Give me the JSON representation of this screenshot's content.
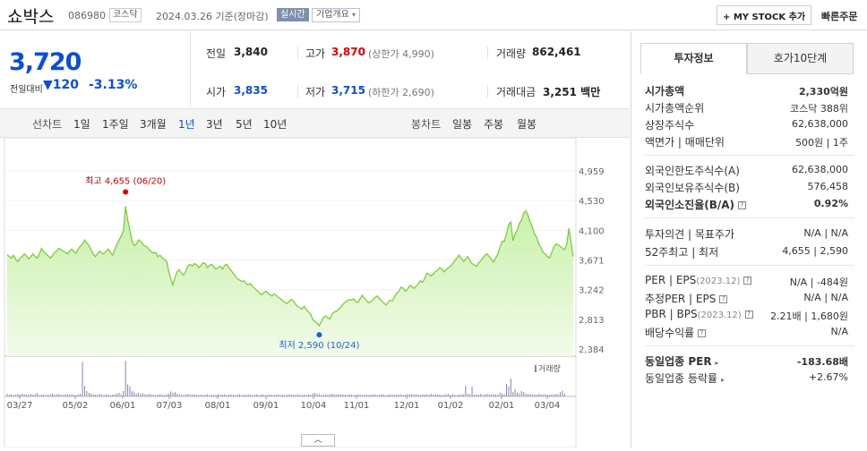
{
  "stock": {
    "name": "쇼박스",
    "code": "086980",
    "market": "코스닥",
    "date": "2024.03.26 기준(장마감)",
    "realtime": "실시간",
    "company_info": "기업개요"
  },
  "actions": {
    "my_stock": "+ MY STOCK 추가",
    "quick_order": "빠른주문"
  },
  "current": {
    "price": "3,720",
    "compare_label": "전일대비",
    "arrow": "▼",
    "change": "120",
    "rate": "-3.13%"
  },
  "summary": {
    "prev_label": "전일",
    "prev": "3,840",
    "high_label": "고가",
    "high": "3,870",
    "upper_limit": "(상한가 4,990)",
    "volume_label": "거래량",
    "volume": "862,461",
    "open_label": "시가",
    "open": "3,835",
    "low_label": "저가",
    "low": "3,715",
    "lower_limit": "(하한가 2,690)",
    "amount_label": "거래대금",
    "amount": "3,251",
    "amount_unit": "백만"
  },
  "chart_tabs": {
    "line_label": "선차트",
    "line_items": [
      "1일",
      "1주일",
      "3개월",
      "1년",
      "3년",
      "5년",
      "10년"
    ],
    "active": "1년",
    "candle_label": "봉차트",
    "candle_items": [
      "일봉",
      "주봉",
      "월봉"
    ]
  },
  "chart_data": {
    "type": "area",
    "yticks": [
      4959,
      4530,
      4100,
      3671,
      3242,
      2813,
      2384
    ],
    "ylim": [
      2384,
      4959
    ],
    "xticks": [
      "03/27",
      "05/02",
      "06/01",
      "07/03",
      "08/01",
      "09/01",
      "10/04",
      "11/01",
      "12/01",
      "01/02",
      "02/01",
      "03/04"
    ],
    "max_label": "최고 4,655 (06/20)",
    "min_label": "최저 2,590 (10/24)",
    "max_value": 4655,
    "min_value": 2590,
    "volume_legend": "거래량",
    "price": [
      3750,
      3720,
      3700,
      3740,
      3680,
      3650,
      3700,
      3720,
      3760,
      3730,
      3690,
      3720,
      3760,
      3720,
      3700,
      3760,
      3840,
      3790,
      3760,
      3730,
      3700,
      3730,
      3780,
      3800,
      3840,
      3820,
      3800,
      3780,
      3760,
      3800,
      3830,
      3790,
      3770,
      3830,
      3870,
      3900,
      3960,
      3920,
      3880,
      3820,
      3760,
      3720,
      3760,
      3800,
      3770,
      3760,
      3800,
      3830,
      3780,
      3740,
      3820,
      3900,
      3960,
      4020,
      4090,
      4450,
      4250,
      4100,
      3950,
      3880,
      3900,
      3960,
      3940,
      3900,
      3870,
      3860,
      3820,
      3790,
      3770,
      3780,
      3720,
      3740,
      3700,
      3680,
      3660,
      3520,
      3400,
      3310,
      3420,
      3500,
      3530,
      3480,
      3450,
      3510,
      3590,
      3610,
      3580,
      3620,
      3600,
      3560,
      3590,
      3630,
      3620,
      3560,
      3590,
      3610,
      3570,
      3540,
      3560,
      3580,
      3540,
      3590,
      3610,
      3560,
      3520,
      3480,
      3440,
      3400,
      3380,
      3360,
      3370,
      3330,
      3310,
      3330,
      3290,
      3260,
      3230,
      3200,
      3170,
      3190,
      3220,
      3200,
      3170,
      3150,
      3180,
      3160,
      3130,
      3110,
      3080,
      3060,
      3040,
      3070,
      3100,
      3080,
      3030,
      3000,
      2980,
      2960,
      3000,
      2950,
      2920,
      2890,
      2810,
      2780,
      2760,
      2720,
      2780,
      2840,
      2860,
      2830,
      2820,
      2890,
      2920,
      2930,
      2960,
      2990,
      3030,
      3060,
      3080,
      3100,
      3090,
      3110,
      3070,
      3060,
      3110,
      3160,
      3120,
      3080,
      3050,
      3070,
      3100,
      3130,
      3150,
      3110,
      3080,
      3050,
      3020,
      3060,
      3090,
      3080,
      3140,
      3190,
      3220,
      3280,
      3260,
      3220,
      3250,
      3300,
      3290,
      3260,
      3290,
      3330,
      3370,
      3350,
      3400,
      3480,
      3460,
      3440,
      3470,
      3510,
      3520,
      3560,
      3540,
      3500,
      3530,
      3560,
      3580,
      3620,
      3660,
      3700,
      3740,
      3700,
      3650,
      3680,
      3720,
      3660,
      3620,
      3600,
      3580,
      3630,
      3660,
      3700,
      3740,
      3760,
      3720,
      3680,
      3640,
      3700,
      3760,
      3860,
      3940,
      3940,
      4050,
      4180,
      4220,
      3950,
      4050,
      4100,
      4200,
      4250,
      4350,
      4380,
      4320,
      4220,
      4150,
      4050,
      4000,
      3900,
      3850,
      3780,
      3760,
      3720,
      3700,
      3780,
      3860,
      3900,
      3890,
      3870,
      3840,
      3820,
      3900,
      4130,
      3920,
      3720
    ],
    "volume": [
      0.08,
      0.05,
      0.06,
      0.04,
      0.05,
      0.07,
      0.05,
      0.08,
      0.06,
      0.05,
      0.06,
      0.07,
      0.05,
      0.06,
      0.1,
      0.04,
      0.05,
      0.06,
      0.04,
      0.05,
      0.06,
      0.08,
      0.05,
      0.06,
      0.07,
      0.05,
      0.04,
      0.06,
      0.07,
      0.05,
      0.06,
      0.05,
      0.04,
      0.06,
      0.08,
      0.96,
      0.3,
      0.15,
      0.1,
      0.08,
      0.06,
      0.05,
      0.06,
      0.07,
      0.05,
      0.04,
      0.06,
      0.05,
      0.04,
      0.05,
      0.06,
      0.08,
      0.1,
      0.06,
      0.15,
      1.0,
      0.34,
      0.28,
      0.15,
      0.12,
      0.08,
      0.1,
      0.07,
      0.09,
      0.06,
      0.05,
      0.07,
      0.06,
      0.05,
      0.04,
      0.05,
      0.06,
      0.05,
      0.04,
      0.06,
      0.08,
      0.14,
      0.1,
      0.12,
      0.08,
      0.06,
      0.05,
      0.04,
      0.06,
      0.07,
      0.05,
      0.05,
      0.06,
      0.04,
      0.05,
      0.05,
      0.04,
      0.05,
      0.06,
      0.04,
      0.05,
      0.04,
      0.05,
      0.06,
      0.05,
      0.05,
      0.06,
      0.04,
      0.05,
      0.06,
      0.05,
      0.04,
      0.05,
      0.06,
      0.04,
      0.05,
      0.04,
      0.06,
      0.05,
      0.04,
      0.05,
      0.06,
      0.04,
      0.05,
      0.05,
      0.04,
      0.05,
      0.06,
      0.04,
      0.05,
      0.05,
      0.06,
      0.04,
      0.05,
      0.04,
      0.05,
      0.06,
      0.05,
      0.04,
      0.05,
      0.06,
      0.05,
      0.04,
      0.05,
      0.04,
      0.06,
      0.05,
      0.08,
      0.1,
      0.07,
      0.06,
      0.05,
      0.04,
      0.06,
      0.05,
      0.06,
      0.08,
      0.06,
      0.05,
      0.07,
      0.05,
      0.06,
      0.05,
      0.04,
      0.06,
      0.05,
      0.04,
      0.05,
      0.06,
      0.05,
      0.04,
      0.05,
      0.06,
      0.04,
      0.05,
      0.05,
      0.06,
      0.04,
      0.05,
      0.06,
      0.05,
      0.04,
      0.05,
      0.06,
      0.05,
      0.04,
      0.06,
      0.05,
      0.06,
      0.04,
      0.05,
      0.06,
      0.05,
      0.07,
      0.05,
      0.06,
      0.05,
      0.04,
      0.06,
      0.05,
      0.06,
      0.05,
      0.07,
      0.05,
      0.06,
      0.05,
      0.06,
      0.04,
      0.05,
      0.06,
      0.07,
      0.05,
      0.06,
      0.05,
      0.04,
      0.05,
      0.06,
      0.05,
      0.3,
      0.08,
      0.06,
      0.28,
      0.05,
      0.06,
      0.05,
      0.07,
      0.05,
      0.06,
      0.08,
      0.06,
      0.05,
      0.07,
      0.05,
      0.06,
      0.1,
      0.08,
      0.06,
      0.35,
      0.28,
      0.5,
      0.12,
      0.2,
      0.1,
      0.08,
      0.15,
      0.12,
      0.08,
      0.06,
      0.07,
      0.05,
      0.06,
      0.05,
      0.07,
      0.06,
      0.05,
      0.06,
      0.05,
      0.04,
      0.06,
      0.05,
      0.07,
      0.06,
      0.12,
      0.16,
      0.08
    ]
  },
  "invest_tabs": {
    "info": "투자정보",
    "order10": "호가10단계"
  },
  "invest": {
    "market_cap_label": "시가총액",
    "market_cap": "2,330억원",
    "cap_rank_label": "시가총액순위",
    "cap_rank": "코스닥 388위",
    "shares_label": "상장주식수",
    "shares": "62,638,000",
    "face_label": "액면가 | 매매단위",
    "face": "500원 | 1주",
    "foreign_limit_label": "외국인한도주식수(A)",
    "foreign_limit": "62,638,000",
    "foreign_hold_label": "외국인보유주식수(B)",
    "foreign_hold": "576,458",
    "foreign_ratio_label": "외국인소진율(B/A)",
    "foreign_ratio": "0.92%",
    "opinion_label": "투자의견 | 목표주가",
    "opinion": "N/A | N/A",
    "week52_label": "52주최고 | 최저",
    "week52": "4,655 | 2,590",
    "per_label": "PER | EPS",
    "per_year": "(2023.12)",
    "per": "N/A | -484원",
    "est_label": "추정PER | EPS",
    "est": "N/A | N/A",
    "pbr_label": "PBR | BPS",
    "pbr_year": "(2023.12)",
    "pbr": "2.21배 | 1,680원",
    "div_label": "배당수익률",
    "div": "N/A",
    "sector_per_label": "동일업종 PER",
    "sector_per": "-183.68배",
    "sector_rate_label": "동일업종 등락률",
    "sector_rate": "+2.67%"
  },
  "help": {
    "q": "?",
    "fold": "︿"
  }
}
